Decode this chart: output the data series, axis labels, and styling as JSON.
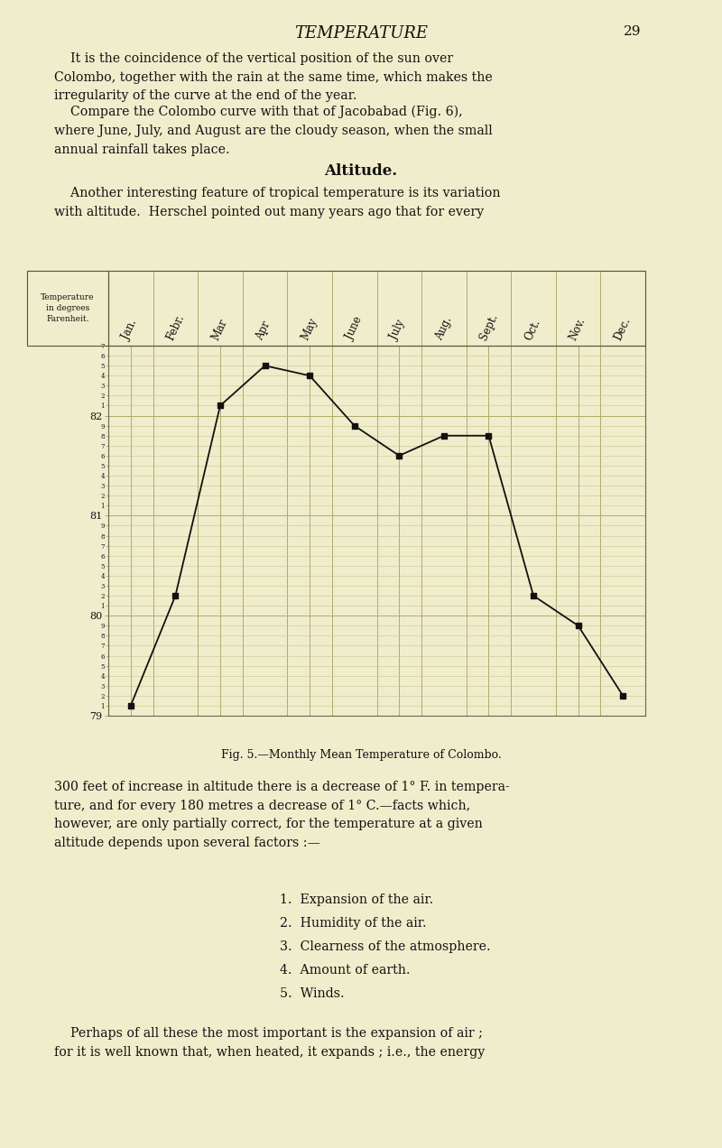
{
  "months": [
    "Jan.",
    "Febr.",
    "Mar",
    "Apr",
    "May",
    "June",
    "July",
    "Aug.",
    "Sept.",
    "Oct.",
    "Nov.",
    "Dec."
  ],
  "temperatures": [
    79.1,
    80.2,
    82.1,
    82.5,
    82.4,
    81.9,
    81.6,
    81.8,
    81.8,
    80.2,
    79.9,
    79.2
  ],
  "y_min": 79.0,
  "y_max": 82.7,
  "bg_color": "#f0edcc",
  "grid_color_minor": "#c8c48a",
  "grid_color_major": "#b0aa70",
  "line_color": "#111111",
  "marker_color": "#111111",
  "text_color": "#111111",
  "page_bg": "#f0edcc",
  "title": "TEMPERATURE",
  "page_number": "29",
  "fig_caption": "Fig. 5.—Monthly Mean Temperature of Colombo.",
  "ylabel": "Temperature\nin degrees\nFarenheit.",
  "list_items": [
    "1.  Expansion of the air.",
    "2.  Humidity of the air.",
    "3.  Clearness of the atmosphere.",
    "4.  Amount of earth.",
    "5.  Winds."
  ]
}
